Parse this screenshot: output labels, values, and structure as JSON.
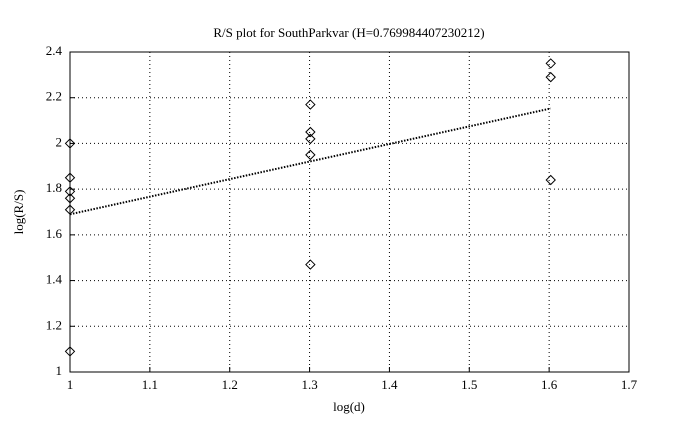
{
  "chart_data": {
    "type": "scatter",
    "title": "R/S plot for SouthParkvar (H=0.769984407230212)",
    "x_label": "log(d)",
    "y_label": "log(R/S)",
    "xlim": [
      1,
      1.7
    ],
    "xticks": [
      1,
      1.1,
      1.2,
      1.3,
      1.4,
      1.5,
      1.6,
      1.7
    ],
    "ylim": [
      1,
      2.4
    ],
    "yticks": [
      1,
      1.2,
      1.4,
      1.6,
      1.8,
      2,
      2.2,
      2.4
    ],
    "grid": true,
    "series": [
      {
        "mode": "markers",
        "color": "#000000",
        "x": [
          1,
          1,
          1,
          1,
          1,
          1,
          1.301,
          1.301,
          1.301,
          1.301,
          1.301,
          1.602,
          1.602,
          1.602
        ],
        "values": [
          2.0,
          1.85,
          1.79,
          1.76,
          1.71,
          1.09,
          2.17,
          2.05,
          2.02,
          1.95,
          1.47,
          2.35,
          2.29,
          1.84
        ]
      },
      {
        "mode": "line",
        "color": "#000000",
        "x": [
          1,
          1.602
        ],
        "values": [
          1.69,
          2.153
        ]
      }
    ]
  }
}
